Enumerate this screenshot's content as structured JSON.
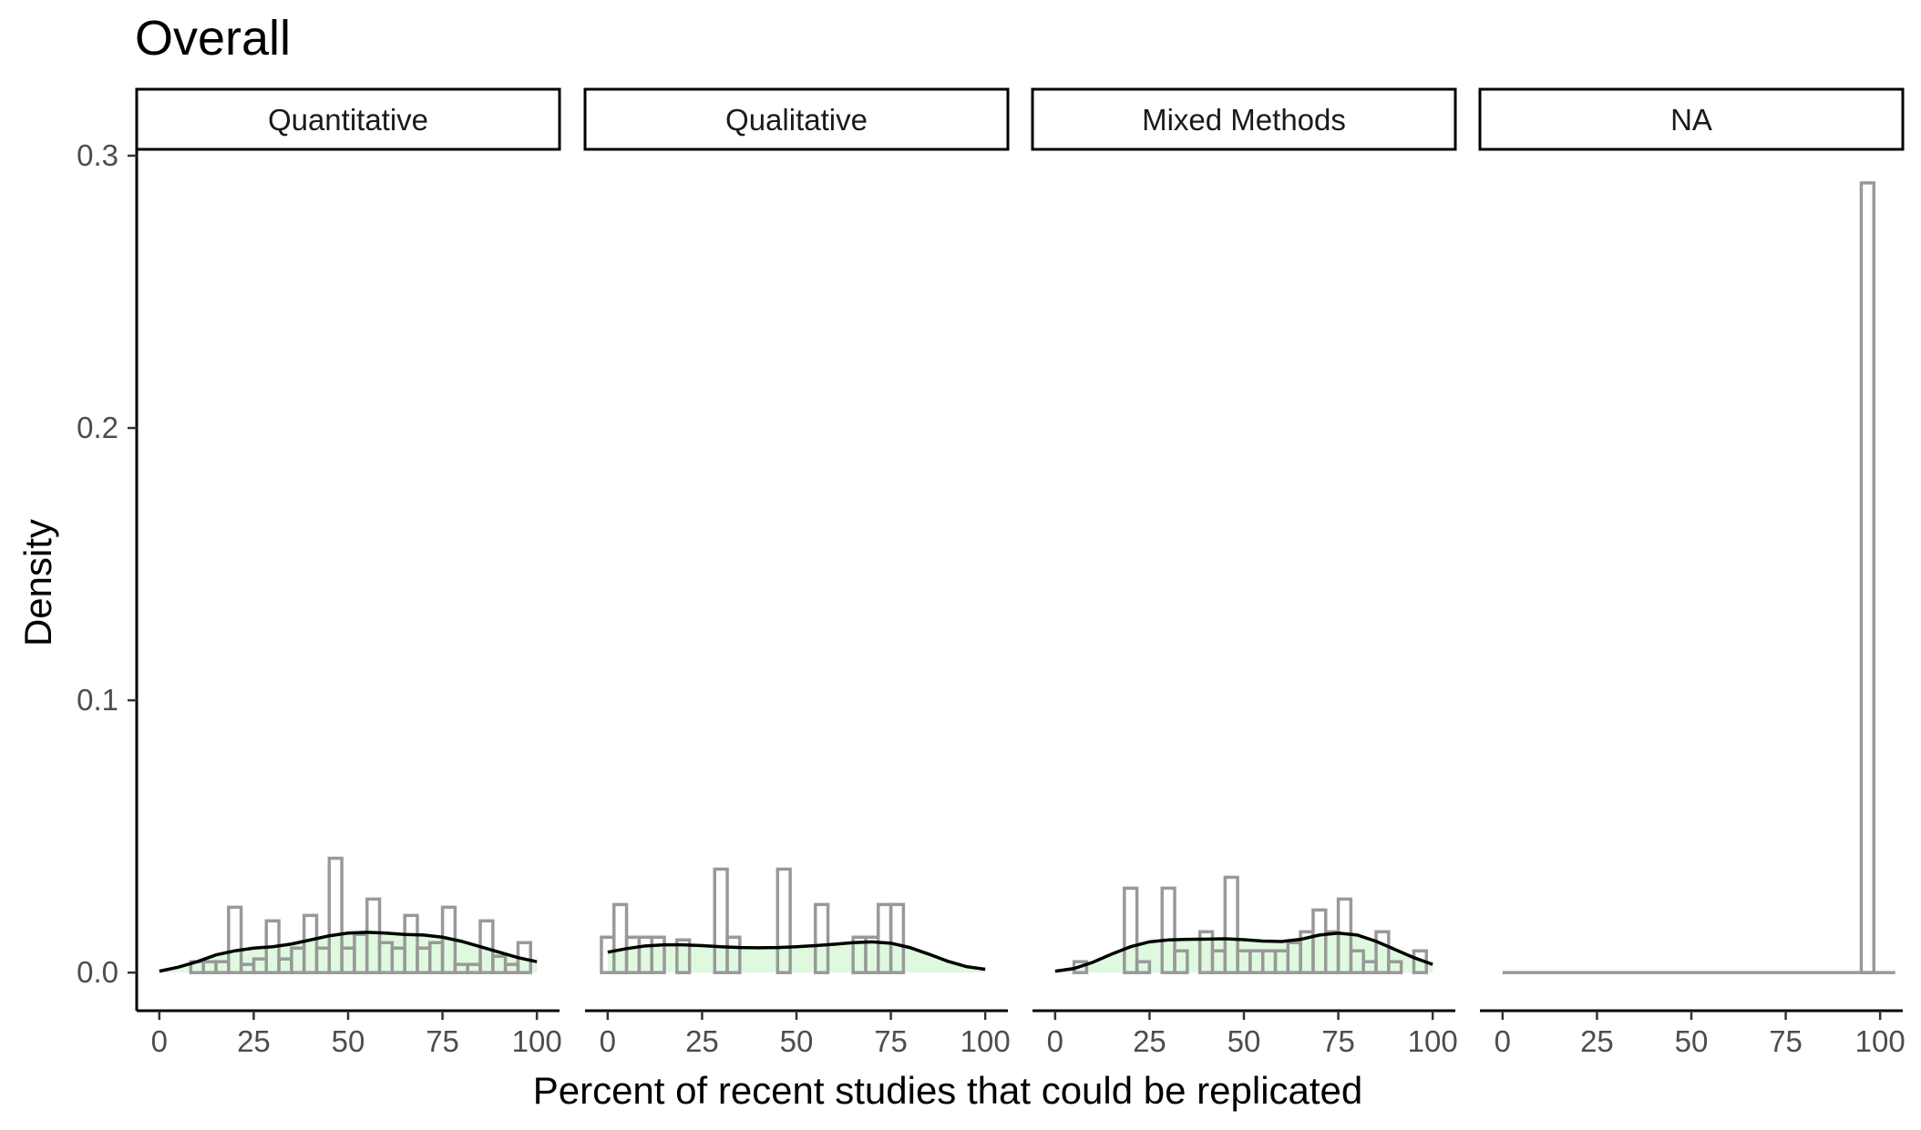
{
  "chart_data": {
    "type": "histogram-density-facets",
    "title": "Overall",
    "xlabel": "Percent of recent studies that could be replicated",
    "ylabel": "Density",
    "xlim": [
      -6,
      106
    ],
    "ylim": [
      -0.014,
      0.302
    ],
    "x_ticks": [
      0,
      25,
      50,
      75,
      100
    ],
    "y_ticks": [
      0.0,
      0.1,
      0.2,
      0.3
    ],
    "x_tick_labels": [
      "0",
      "25",
      "50",
      "75",
      "100"
    ],
    "y_tick_labels": [
      "0.0",
      "0.1",
      "0.2",
      "0.3"
    ],
    "bin_width": 3.33,
    "hist_color": "#999999",
    "density_fill": "#dcf8dc",
    "density_line": "#000000",
    "grid": false,
    "facets": [
      {
        "name": "Quantitative",
        "bins": [
          {
            "x": 0,
            "y": 0.0
          },
          {
            "x": 3.33,
            "y": 0.0
          },
          {
            "x": 6.67,
            "y": 0.0
          },
          {
            "x": 10,
            "y": 0.004
          },
          {
            "x": 13.33,
            "y": 0.004
          },
          {
            "x": 16.67,
            "y": 0.004
          },
          {
            "x": 20,
            "y": 0.024
          },
          {
            "x": 23.33,
            "y": 0.003
          },
          {
            "x": 26.67,
            "y": 0.005
          },
          {
            "x": 30,
            "y": 0.019
          },
          {
            "x": 33.33,
            "y": 0.005
          },
          {
            "x": 36.67,
            "y": 0.009
          },
          {
            "x": 40,
            "y": 0.021
          },
          {
            "x": 43.33,
            "y": 0.009
          },
          {
            "x": 46.67,
            "y": 0.042
          },
          {
            "x": 50,
            "y": 0.009
          },
          {
            "x": 53.33,
            "y": 0.014
          },
          {
            "x": 56.67,
            "y": 0.027
          },
          {
            "x": 60,
            "y": 0.011
          },
          {
            "x": 63.33,
            "y": 0.009
          },
          {
            "x": 66.67,
            "y": 0.021
          },
          {
            "x": 70,
            "y": 0.009
          },
          {
            "x": 73.33,
            "y": 0.011
          },
          {
            "x": 76.67,
            "y": 0.024
          },
          {
            "x": 80,
            "y": 0.003
          },
          {
            "x": 83.33,
            "y": 0.003
          },
          {
            "x": 86.67,
            "y": 0.019
          },
          {
            "x": 90,
            "y": 0.006
          },
          {
            "x": 93.33,
            "y": 0.003
          },
          {
            "x": 96.67,
            "y": 0.011
          }
        ],
        "density": [
          {
            "x": 0,
            "y": 0.0005
          },
          {
            "x": 5,
            "y": 0.002
          },
          {
            "x": 10,
            "y": 0.004
          },
          {
            "x": 15,
            "y": 0.0065
          },
          {
            "x": 20,
            "y": 0.008
          },
          {
            "x": 25,
            "y": 0.009
          },
          {
            "x": 30,
            "y": 0.0095
          },
          {
            "x": 35,
            "y": 0.0105
          },
          {
            "x": 40,
            "y": 0.012
          },
          {
            "x": 45,
            "y": 0.0135
          },
          {
            "x": 50,
            "y": 0.0145
          },
          {
            "x": 55,
            "y": 0.0148
          },
          {
            "x": 60,
            "y": 0.0145
          },
          {
            "x": 65,
            "y": 0.014
          },
          {
            "x": 70,
            "y": 0.0138
          },
          {
            "x": 75,
            "y": 0.013
          },
          {
            "x": 80,
            "y": 0.0115
          },
          {
            "x": 85,
            "y": 0.0095
          },
          {
            "x": 90,
            "y": 0.0075
          },
          {
            "x": 95,
            "y": 0.0055
          },
          {
            "x": 100,
            "y": 0.004
          }
        ]
      },
      {
        "name": "Qualitative",
        "bins": [
          {
            "x": 0,
            "y": 0.013
          },
          {
            "x": 3.33,
            "y": 0.025
          },
          {
            "x": 6.67,
            "y": 0.013
          },
          {
            "x": 10,
            "y": 0.013
          },
          {
            "x": 13.33,
            "y": 0.013
          },
          {
            "x": 16.67,
            "y": 0.0
          },
          {
            "x": 20,
            "y": 0.012
          },
          {
            "x": 23.33,
            "y": 0.0
          },
          {
            "x": 26.67,
            "y": 0.0
          },
          {
            "x": 30,
            "y": 0.038
          },
          {
            "x": 33.33,
            "y": 0.013
          },
          {
            "x": 36.67,
            "y": 0.0
          },
          {
            "x": 40,
            "y": 0.0
          },
          {
            "x": 43.33,
            "y": 0.0
          },
          {
            "x": 46.67,
            "y": 0.038
          },
          {
            "x": 50,
            "y": 0.0
          },
          {
            "x": 53.33,
            "y": 0.0
          },
          {
            "x": 56.67,
            "y": 0.025
          },
          {
            "x": 60,
            "y": 0.0
          },
          {
            "x": 63.33,
            "y": 0.0
          },
          {
            "x": 66.67,
            "y": 0.013
          },
          {
            "x": 70,
            "y": 0.013
          },
          {
            "x": 73.33,
            "y": 0.025
          },
          {
            "x": 76.67,
            "y": 0.025
          }
        ],
        "density": [
          {
            "x": 0,
            "y": 0.0075
          },
          {
            "x": 5,
            "y": 0.0088
          },
          {
            "x": 10,
            "y": 0.0098
          },
          {
            "x": 15,
            "y": 0.0102
          },
          {
            "x": 20,
            "y": 0.0102
          },
          {
            "x": 25,
            "y": 0.0099
          },
          {
            "x": 30,
            "y": 0.0095
          },
          {
            "x": 35,
            "y": 0.0092
          },
          {
            "x": 40,
            "y": 0.0091
          },
          {
            "x": 45,
            "y": 0.0092
          },
          {
            "x": 50,
            "y": 0.0095
          },
          {
            "x": 55,
            "y": 0.0099
          },
          {
            "x": 60,
            "y": 0.0104
          },
          {
            "x": 65,
            "y": 0.011
          },
          {
            "x": 70,
            "y": 0.0113
          },
          {
            "x": 75,
            "y": 0.0108
          },
          {
            "x": 80,
            "y": 0.0092
          },
          {
            "x": 85,
            "y": 0.0068
          },
          {
            "x": 90,
            "y": 0.0042
          },
          {
            "x": 95,
            "y": 0.0022
          },
          {
            "x": 100,
            "y": 0.0012
          }
        ]
      },
      {
        "name": "Mixed Methods",
        "bins": [
          {
            "x": 0,
            "y": 0.0
          },
          {
            "x": 3.33,
            "y": 0.0
          },
          {
            "x": 6.67,
            "y": 0.004
          },
          {
            "x": 10,
            "y": 0.0
          },
          {
            "x": 13.33,
            "y": 0.0
          },
          {
            "x": 16.67,
            "y": 0.0
          },
          {
            "x": 20,
            "y": 0.031
          },
          {
            "x": 23.33,
            "y": 0.004
          },
          {
            "x": 26.67,
            "y": 0.0
          },
          {
            "x": 30,
            "y": 0.031
          },
          {
            "x": 33.33,
            "y": 0.008
          },
          {
            "x": 36.67,
            "y": 0.0
          },
          {
            "x": 40,
            "y": 0.015
          },
          {
            "x": 43.33,
            "y": 0.008
          },
          {
            "x": 46.67,
            "y": 0.035
          },
          {
            "x": 50,
            "y": 0.008
          },
          {
            "x": 53.33,
            "y": 0.008
          },
          {
            "x": 56.67,
            "y": 0.008
          },
          {
            "x": 60,
            "y": 0.008
          },
          {
            "x": 63.33,
            "y": 0.011
          },
          {
            "x": 66.67,
            "y": 0.015
          },
          {
            "x": 70,
            "y": 0.023
          },
          {
            "x": 73.33,
            "y": 0.015
          },
          {
            "x": 76.67,
            "y": 0.027
          },
          {
            "x": 80,
            "y": 0.008
          },
          {
            "x": 83.33,
            "y": 0.004
          },
          {
            "x": 86.67,
            "y": 0.015
          },
          {
            "x": 90,
            "y": 0.004
          },
          {
            "x": 93.33,
            "y": 0.0
          },
          {
            "x": 96.67,
            "y": 0.008
          }
        ],
        "density": [
          {
            "x": 0,
            "y": 0.0005
          },
          {
            "x": 5,
            "y": 0.0015
          },
          {
            "x": 10,
            "y": 0.0038
          },
          {
            "x": 15,
            "y": 0.0068
          },
          {
            "x": 20,
            "y": 0.0095
          },
          {
            "x": 25,
            "y": 0.0113
          },
          {
            "x": 30,
            "y": 0.012
          },
          {
            "x": 35,
            "y": 0.0122
          },
          {
            "x": 40,
            "y": 0.0123
          },
          {
            "x": 45,
            "y": 0.0124
          },
          {
            "x": 50,
            "y": 0.0121
          },
          {
            "x": 55,
            "y": 0.0116
          },
          {
            "x": 60,
            "y": 0.0114
          },
          {
            "x": 65,
            "y": 0.0122
          },
          {
            "x": 70,
            "y": 0.0138
          },
          {
            "x": 75,
            "y": 0.0145
          },
          {
            "x": 80,
            "y": 0.0138
          },
          {
            "x": 85,
            "y": 0.0115
          },
          {
            "x": 90,
            "y": 0.0085
          },
          {
            "x": 95,
            "y": 0.0055
          },
          {
            "x": 100,
            "y": 0.003
          }
        ]
      },
      {
        "name": "NA",
        "bins": [
          {
            "x": 96.67,
            "y": 0.29
          }
        ],
        "density": [],
        "baseline_from": 0,
        "baseline_to": 100
      }
    ]
  }
}
